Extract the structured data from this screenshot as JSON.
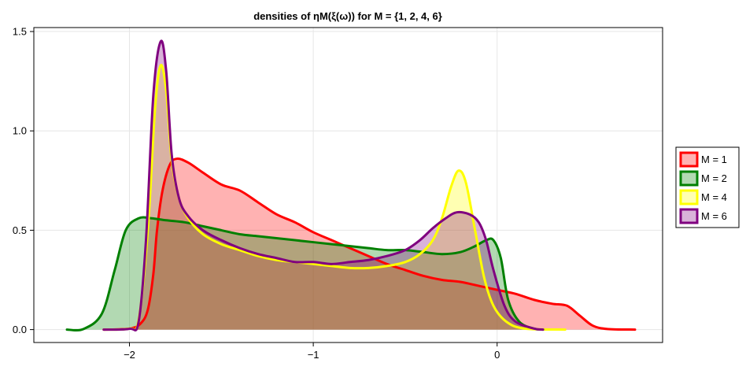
{
  "chart_data": {
    "type": "area",
    "title": "densities of ηM(ξ(ω)) for M = {1, 2, 4, 6}",
    "xlabel": "",
    "ylabel": "",
    "xlim": [
      -2.52,
      0.9
    ],
    "ylim": [
      -0.065,
      1.52
    ],
    "xticks": [
      -2,
      -1,
      0
    ],
    "xtick_labels": [
      "−2",
      "−1",
      "0"
    ],
    "yticks": [
      0.0,
      0.5,
      1.0,
      1.5
    ],
    "ytick_labels": [
      "0.0",
      "0.5",
      "1.0",
      "1.5"
    ],
    "grid": true,
    "legend_position": "right",
    "series": [
      {
        "name": "M = 1",
        "color": "#ff0000",
        "points": [
          [
            -2.14,
            0.0
          ],
          [
            -2.0,
            0.005
          ],
          [
            -1.94,
            0.03
          ],
          [
            -1.9,
            0.1
          ],
          [
            -1.87,
            0.28
          ],
          [
            -1.85,
            0.5
          ],
          [
            -1.82,
            0.7
          ],
          [
            -1.78,
            0.83
          ],
          [
            -1.74,
            0.86
          ],
          [
            -1.68,
            0.84
          ],
          [
            -1.6,
            0.79
          ],
          [
            -1.5,
            0.73
          ],
          [
            -1.4,
            0.7
          ],
          [
            -1.3,
            0.64
          ],
          [
            -1.2,
            0.58
          ],
          [
            -1.1,
            0.54
          ],
          [
            -1.0,
            0.49
          ],
          [
            -0.9,
            0.45
          ],
          [
            -0.8,
            0.41
          ],
          [
            -0.7,
            0.37
          ],
          [
            -0.6,
            0.33
          ],
          [
            -0.5,
            0.3
          ],
          [
            -0.4,
            0.27
          ],
          [
            -0.3,
            0.25
          ],
          [
            -0.2,
            0.24
          ],
          [
            -0.1,
            0.22
          ],
          [
            0.0,
            0.2
          ],
          [
            0.1,
            0.18
          ],
          [
            0.2,
            0.15
          ],
          [
            0.3,
            0.13
          ],
          [
            0.38,
            0.12
          ],
          [
            0.45,
            0.07
          ],
          [
            0.52,
            0.02
          ],
          [
            0.6,
            0.003
          ],
          [
            0.75,
            0.0
          ]
        ]
      },
      {
        "name": "M = 2",
        "color": "#008000",
        "points": [
          [
            -2.34,
            0.0
          ],
          [
            -2.25,
            0.003
          ],
          [
            -2.15,
            0.08
          ],
          [
            -2.08,
            0.3
          ],
          [
            -2.02,
            0.5
          ],
          [
            -1.95,
            0.56
          ],
          [
            -1.88,
            0.56
          ],
          [
            -1.8,
            0.55
          ],
          [
            -1.7,
            0.54
          ],
          [
            -1.6,
            0.52
          ],
          [
            -1.5,
            0.5
          ],
          [
            -1.4,
            0.48
          ],
          [
            -1.3,
            0.47
          ],
          [
            -1.2,
            0.46
          ],
          [
            -1.1,
            0.45
          ],
          [
            -1.0,
            0.44
          ],
          [
            -0.9,
            0.43
          ],
          [
            -0.8,
            0.42
          ],
          [
            -0.7,
            0.41
          ],
          [
            -0.6,
            0.4
          ],
          [
            -0.5,
            0.4
          ],
          [
            -0.4,
            0.39
          ],
          [
            -0.3,
            0.38
          ],
          [
            -0.2,
            0.39
          ],
          [
            -0.12,
            0.42
          ],
          [
            -0.06,
            0.45
          ],
          [
            -0.02,
            0.45
          ],
          [
            0.02,
            0.36
          ],
          [
            0.06,
            0.15
          ],
          [
            0.12,
            0.04
          ],
          [
            0.2,
            0.005
          ],
          [
            0.25,
            0.0
          ]
        ]
      },
      {
        "name": "M = 4",
        "color": "#ffff00",
        "points": [
          [
            -2.14,
            0.0
          ],
          [
            -2.0,
            0.005
          ],
          [
            -1.95,
            0.05
          ],
          [
            -1.9,
            0.5
          ],
          [
            -1.86,
            1.12
          ],
          [
            -1.83,
            1.33
          ],
          [
            -1.8,
            1.2
          ],
          [
            -1.77,
            0.85
          ],
          [
            -1.73,
            0.66
          ],
          [
            -1.68,
            0.56
          ],
          [
            -1.6,
            0.48
          ],
          [
            -1.5,
            0.43
          ],
          [
            -1.4,
            0.4
          ],
          [
            -1.3,
            0.37
          ],
          [
            -1.2,
            0.35
          ],
          [
            -1.1,
            0.34
          ],
          [
            -1.0,
            0.33
          ],
          [
            -0.9,
            0.32
          ],
          [
            -0.8,
            0.31
          ],
          [
            -0.7,
            0.31
          ],
          [
            -0.6,
            0.32
          ],
          [
            -0.5,
            0.34
          ],
          [
            -0.42,
            0.38
          ],
          [
            -0.35,
            0.45
          ],
          [
            -0.3,
            0.56
          ],
          [
            -0.25,
            0.72
          ],
          [
            -0.21,
            0.8
          ],
          [
            -0.17,
            0.74
          ],
          [
            -0.12,
            0.5
          ],
          [
            -0.07,
            0.26
          ],
          [
            -0.02,
            0.12
          ],
          [
            0.05,
            0.04
          ],
          [
            0.15,
            0.005
          ],
          [
            0.37,
            0.0
          ]
        ]
      },
      {
        "name": "M = 6",
        "color": "#800080",
        "points": [
          [
            -2.14,
            0.0
          ],
          [
            -2.0,
            0.004
          ],
          [
            -1.95,
            0.04
          ],
          [
            -1.91,
            0.45
          ],
          [
            -1.87,
            1.18
          ],
          [
            -1.83,
            1.45
          ],
          [
            -1.8,
            1.3
          ],
          [
            -1.77,
            0.88
          ],
          [
            -1.73,
            0.66
          ],
          [
            -1.68,
            0.57
          ],
          [
            -1.6,
            0.5
          ],
          [
            -1.5,
            0.45
          ],
          [
            -1.4,
            0.41
          ],
          [
            -1.3,
            0.38
          ],
          [
            -1.2,
            0.36
          ],
          [
            -1.1,
            0.34
          ],
          [
            -1.0,
            0.34
          ],
          [
            -0.9,
            0.33
          ],
          [
            -0.8,
            0.34
          ],
          [
            -0.7,
            0.35
          ],
          [
            -0.6,
            0.37
          ],
          [
            -0.5,
            0.4
          ],
          [
            -0.42,
            0.45
          ],
          [
            -0.35,
            0.51
          ],
          [
            -0.28,
            0.56
          ],
          [
            -0.22,
            0.59
          ],
          [
            -0.15,
            0.58
          ],
          [
            -0.1,
            0.54
          ],
          [
            -0.06,
            0.45
          ],
          [
            -0.02,
            0.3
          ],
          [
            0.04,
            0.12
          ],
          [
            0.1,
            0.04
          ],
          [
            0.2,
            0.005
          ],
          [
            0.25,
            0.0
          ]
        ]
      }
    ]
  },
  "legend": {
    "items": [
      {
        "label": "M = 1",
        "color": "#ff0000"
      },
      {
        "label": "M = 2",
        "color": "#008000"
      },
      {
        "label": "M = 4",
        "color": "#ffff00"
      },
      {
        "label": "M = 6",
        "color": "#800080"
      }
    ]
  }
}
